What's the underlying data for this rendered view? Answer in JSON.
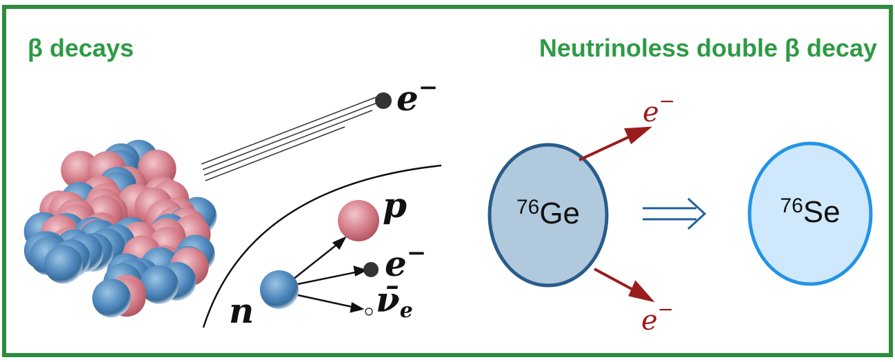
{
  "left_panel": {
    "title": "β decays",
    "labels": {
      "electron_out": {
        "base": "e",
        "sup": "−"
      },
      "proton": "p",
      "electron": {
        "base": "e",
        "sup": "−"
      },
      "antineutrino": {
        "base": "ν̄",
        "sub": "e"
      },
      "neutron": "n"
    }
  },
  "right_panel": {
    "title": "Neutrinoless double β decay",
    "parent": {
      "mass": "76",
      "symbol": "Ge"
    },
    "daughter": {
      "mass": "76",
      "symbol": "Se"
    },
    "electron_top": {
      "base": "e",
      "sup": "−"
    },
    "electron_bottom": {
      "base": "e",
      "sup": "−"
    }
  }
}
